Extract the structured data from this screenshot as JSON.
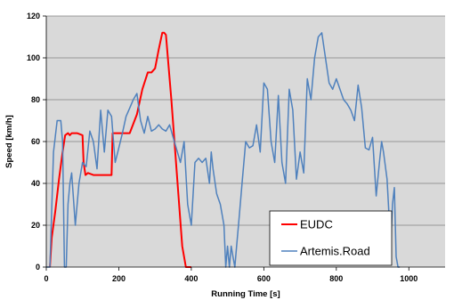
{
  "chart_data": {
    "type": "line",
    "title": "",
    "xlabel": "Running Time [s]",
    "ylabel": "Speed [km/h]",
    "xlim": [
      0,
      1100
    ],
    "ylim": [
      0,
      120
    ],
    "xticks": [
      0,
      200,
      400,
      600,
      800,
      1000
    ],
    "yticks": [
      0,
      20,
      40,
      60,
      80,
      100,
      120
    ],
    "grid": "horizontal",
    "plot_background": "#d9d9d9",
    "legend_position": "bottom-right",
    "series": [
      {
        "name": "EUDC",
        "color": "#ff0000",
        "x": [
          10,
          15,
          25,
          35,
          45,
          52,
          60,
          65,
          70,
          85,
          100,
          103,
          108,
          115,
          130,
          150,
          170,
          180,
          183,
          195,
          210,
          230,
          250,
          265,
          280,
          290,
          300,
          310,
          320,
          325,
          330,
          345,
          360,
          375,
          385,
          400
        ],
        "y": [
          0,
          14,
          27,
          42,
          55,
          63,
          64,
          63,
          64,
          64,
          63,
          50,
          44,
          45,
          44,
          44,
          44,
          44,
          64,
          64,
          64,
          64,
          73,
          85,
          93,
          93,
          95,
          104,
          112,
          112,
          111,
          80,
          45,
          10,
          0,
          0
        ]
      },
      {
        "name": "Artemis.Road",
        "color": "#4f81bd",
        "x": [
          0,
          10,
          20,
          30,
          40,
          45,
          50,
          55,
          60,
          65,
          70,
          80,
          90,
          100,
          110,
          120,
          130,
          140,
          150,
          160,
          170,
          180,
          190,
          200,
          210,
          220,
          230,
          240,
          250,
          260,
          270,
          280,
          290,
          300,
          310,
          320,
          330,
          340,
          350,
          360,
          370,
          380,
          390,
          400,
          410,
          420,
          430,
          440,
          450,
          455,
          460,
          470,
          480,
          490,
          495,
          500,
          505,
          510,
          515,
          520,
          525,
          530,
          540,
          550,
          560,
          570,
          580,
          590,
          600,
          610,
          620,
          630,
          640,
          650,
          660,
          670,
          680,
          690,
          700,
          710,
          720,
          730,
          740,
          750,
          760,
          770,
          780,
          790,
          800,
          810,
          820,
          830,
          840,
          850,
          860,
          870,
          880,
          890,
          900,
          910,
          920,
          925,
          930,
          940,
          950,
          955,
          960,
          965,
          970,
          975
        ],
        "y": [
          0,
          0,
          55,
          70,
          70,
          60,
          0,
          0,
          30,
          40,
          45,
          20,
          40,
          50,
          48,
          65,
          60,
          47,
          75,
          55,
          75,
          72,
          50,
          57,
          64,
          72,
          76,
          80,
          83,
          70,
          64,
          72,
          65,
          66,
          68,
          66,
          65,
          68,
          62,
          56,
          50,
          60,
          30,
          20,
          50,
          52,
          50,
          52,
          40,
          55,
          47,
          35,
          30,
          20,
          0,
          10,
          0,
          10,
          5,
          0,
          10,
          20,
          40,
          60,
          57,
          58,
          68,
          55,
          88,
          85,
          60,
          50,
          82,
          50,
          40,
          85,
          75,
          42,
          55,
          45,
          90,
          80,
          100,
          110,
          112,
          100,
          88,
          85,
          90,
          85,
          80,
          78,
          75,
          70,
          87,
          76,
          57,
          56,
          62,
          34,
          52,
          60,
          55,
          42,
          10,
          30,
          38,
          5,
          0,
          0
        ]
      }
    ]
  }
}
